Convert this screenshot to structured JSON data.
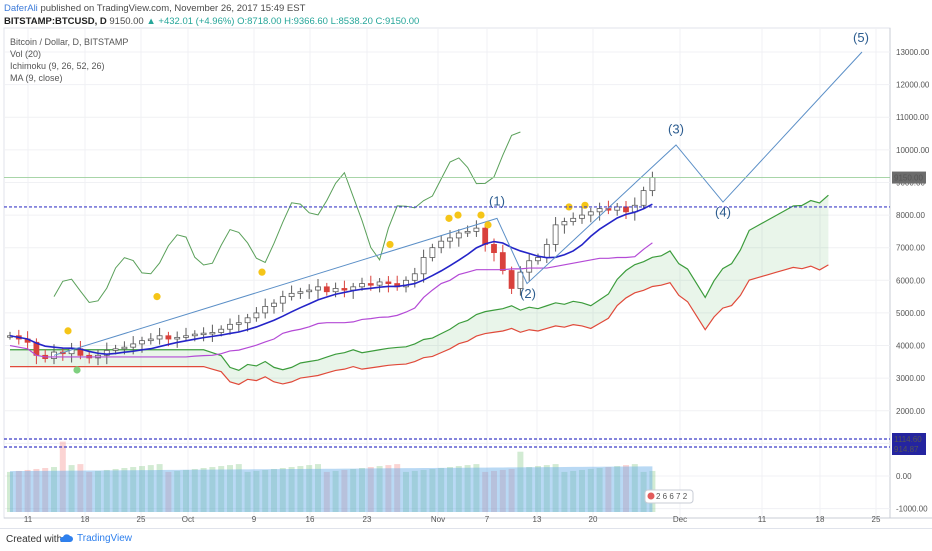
{
  "header": {
    "user": "DaferAli",
    "published": "published on TradingView.com, November 26, 2017 15:49 EST",
    "symbol": "BITSTAMP:BTCUSD, D",
    "last": "9150.00",
    "change": "▲ +432.01 (+4.96%)",
    "ohlc": "O:8718.00 H:9366.60 L:8538.20 C:9150.00"
  },
  "legend": {
    "line1": "Bitcoin / Dollar, D, BITSTAMP",
    "line2": "Vol (20)",
    "line3": "Ichimoku (9, 26, 52, 26)",
    "line4": "MA (9, close)"
  },
  "price_badges": {
    "last": "9150.00",
    "upper": "1114.60",
    "lower": "914.87"
  },
  "wave_labels": [
    "(1)",
    "(2)",
    "(3)",
    "(4)",
    "(5)"
  ],
  "calendar_icon": "2 6 6 7 2",
  "footer": {
    "created": "Created with",
    "brand": "TradingView"
  },
  "chart_data": {
    "type": "candlestick",
    "title": "Bitcoin / Dollar, D, BITSTAMP",
    "y_axis": {
      "ticks": [
        "-1000.00",
        "0.00",
        "1000.00",
        "2000.00",
        "3000.00",
        "4000.00",
        "5000.00",
        "6000.00",
        "7000.00",
        "8000.00",
        "9000.00",
        "10000.00",
        "11000.00",
        "12000.00",
        "13000.00"
      ],
      "range": [
        -1000,
        13300
      ]
    },
    "x_axis": {
      "ticks": [
        "11",
        "18",
        "25",
        "Oct",
        "9",
        "16",
        "23",
        "Nov",
        "7",
        "13",
        "20",
        "Dec",
        "11",
        "18",
        "25"
      ]
    },
    "close_series": [
      4300,
      4200,
      4100,
      3700,
      3600,
      3800,
      3750,
      3900,
      3700,
      3620,
      3700,
      3850,
      3900,
      3950,
      4050,
      4150,
      4200,
      4300,
      4200,
      4250,
      4300,
      4350,
      4380,
      4400,
      4500,
      4650,
      4700,
      4850,
      5000,
      5200,
      5300,
      5500,
      5600,
      5650,
      5700,
      5800,
      5650,
      5750,
      5700,
      5800,
      5900,
      5850,
      5950,
      5900,
      5800,
      6000,
      6200,
      6700,
      7000,
      7200,
      7300,
      7450,
      7500,
      7600,
      7100,
      6850,
      6300,
      5750,
      6250,
      6600,
      6700,
      7100,
      7700,
      7800,
      7900,
      8000,
      8100,
      8200,
      8150,
      8250,
      8100,
      8300,
      8750,
      9150
    ],
    "horizontal_levels": [
      9150.0,
      8250.0
    ]
  }
}
